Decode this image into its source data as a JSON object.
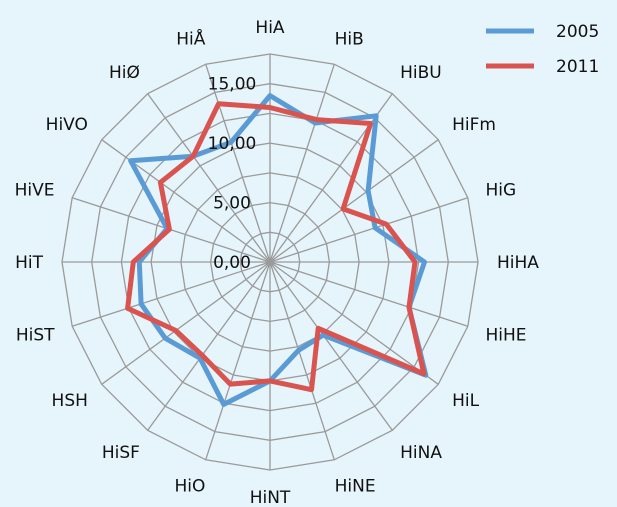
{
  "chart_data": {
    "type": "radar",
    "categories": [
      "HiA",
      "HiB",
      "HiBU",
      "HiFm",
      "HiG",
      "HiHA",
      "HiHE",
      "HiL",
      "HiNA",
      "HiNE",
      "HiNT",
      "HiO",
      "HiSF",
      "HSH",
      "HiST",
      "HiT",
      "HiVE",
      "HiVO",
      "HiØ",
      "HiÅ"
    ],
    "rlim": [
      0,
      15
    ],
    "ticks": [
      "0,00",
      "5,00",
      "10,00",
      "15,00"
    ],
    "tick_values": [
      0,
      5,
      10,
      15
    ],
    "grid": true,
    "legend_position": "top-right",
    "series": [
      {
        "name": "2005",
        "color": "#5b9bd5",
        "values": [
          14.0,
          12.3,
          15.2,
          10.2,
          9.3,
          13.0,
          12.3,
          16.2,
          7.6,
          7.8,
          10.0,
          12.6,
          10.0,
          10.9,
          11.4,
          11.0,
          9.1,
          14.5,
          11.0,
          10.6
        ]
      },
      {
        "name": "2011",
        "color": "#d9534f",
        "values": [
          13.0,
          12.6,
          14.4,
          7.6,
          10.3,
          12.2,
          12.3,
          16.0,
          6.9,
          11.3,
          10.0,
          10.8,
          9.7,
          9.8,
          12.6,
          11.5,
          8.9,
          11.4,
          11.0,
          14.0
        ]
      }
    ]
  }
}
